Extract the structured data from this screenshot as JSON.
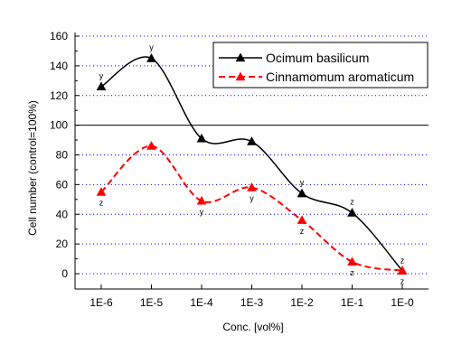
{
  "chart_data": {
    "type": "line",
    "categories": [
      "1E-6",
      "1E-5",
      "1E-4",
      "1E-3",
      "1E-2",
      "1E-1",
      "1E-0"
    ],
    "xlabel": "Conc. [vol%]",
    "ylabel": "Cell number (control=100%)",
    "ylim": [
      -10,
      160
    ],
    "yticks": [
      0,
      20,
      40,
      60,
      80,
      100,
      120,
      140,
      160
    ],
    "grid": "horizontal dotted, blue",
    "reference_line": 100,
    "legend_position": "top-right",
    "series": [
      {
        "name": "Ocimum basilicum",
        "color": "#000000",
        "line_style": "solid",
        "marker": "triangle",
        "values": [
          126,
          145,
          91,
          89,
          54,
          41,
          2
        ],
        "annotations": [
          "y",
          "y",
          "",
          "",
          "y",
          "z",
          "z"
        ]
      },
      {
        "name": "Cinnamomum aromaticum",
        "color": "#ff0000",
        "line_style": "dashed",
        "marker": "triangle",
        "values": [
          55,
          86,
          49,
          58,
          36,
          8,
          2
        ],
        "annotations": [
          "z",
          "",
          "y",
          "y",
          "z",
          "z",
          "z"
        ]
      }
    ]
  }
}
